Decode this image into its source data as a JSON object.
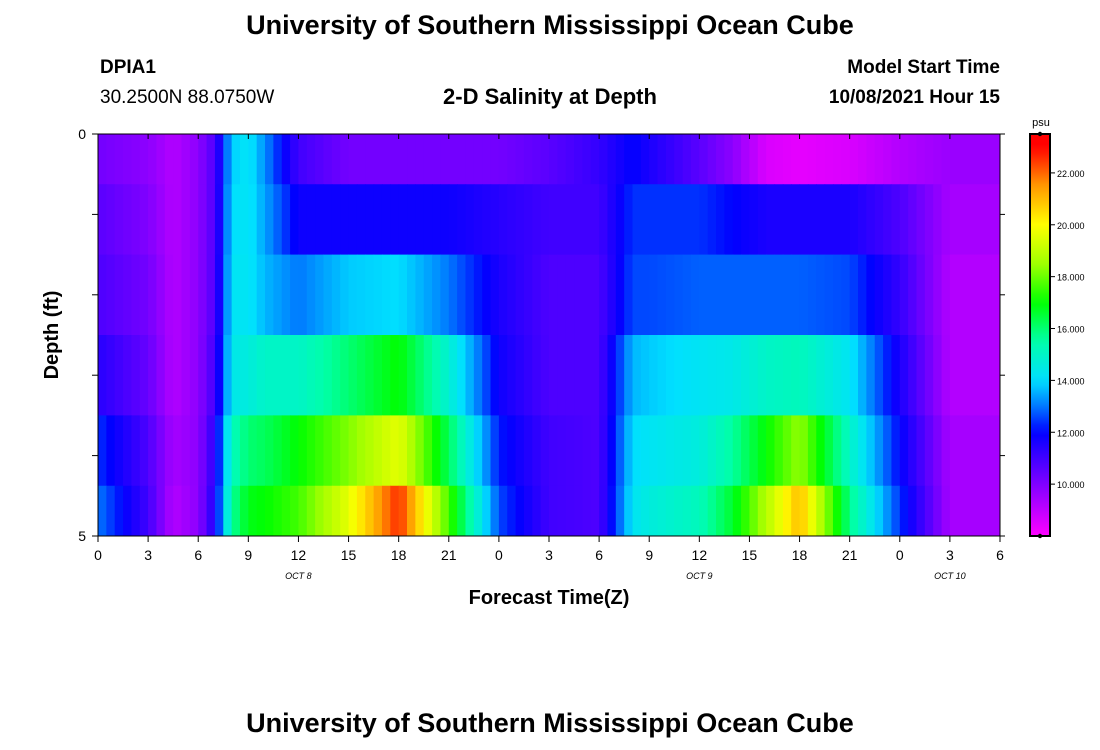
{
  "page": {
    "title_top": "University of Southern Mississippi Ocean Cube",
    "title_bottom": "University of Southern Mississippi Ocean Cube",
    "station_id": "DPIA1",
    "station_coords": "30.2500N  88.0750W",
    "model_start_label": "Model Start Time",
    "model_start_value": "10/08/2021 Hour 15"
  },
  "chart_data": {
    "type": "heatmap",
    "title": "2-D Salinity at Depth",
    "xlabel": "Forecast Time(Z)",
    "ylabel": "Depth (ft)",
    "x_tick_labels": [
      "0",
      "3",
      "6",
      "9",
      "12",
      "15",
      "18",
      "21",
      "0",
      "3",
      "6",
      "9",
      "12",
      "15",
      "18",
      "21",
      "0",
      "3",
      "6"
    ],
    "date_labels": [
      {
        "label": "OCT 8",
        "hour": 12
      },
      {
        "label": "OCT 9",
        "hour": 36
      },
      {
        "label": "OCT 10",
        "hour": 51
      }
    ],
    "x_range_hours": [
      0,
      54
    ],
    "y_tick_labels": [
      "0",
      "5"
    ],
    "y_range": [
      0,
      5
    ],
    "depth_rows": [
      0.25,
      1.0,
      2.0,
      3.0,
      4.0,
      4.75
    ],
    "colorbar": {
      "unit": "psu",
      "min": 8.0,
      "max": 23.5,
      "tick_values": [
        10,
        12,
        14,
        16,
        18,
        20,
        22
      ],
      "tick_labels": [
        "10.000",
        "12.000",
        "14.000",
        "16.000",
        "18.000",
        "20.000",
        "22.000"
      ]
    },
    "color_scale": [
      [
        8.0,
        "#ff00ff"
      ],
      [
        9.5,
        "#a000ff"
      ],
      [
        11.0,
        "#4000ff"
      ],
      [
        12.0,
        "#0000ff"
      ],
      [
        13.0,
        "#0078ff"
      ],
      [
        14.0,
        "#00e0ff"
      ],
      [
        15.5,
        "#00ffaa"
      ],
      [
        17.0,
        "#00ff00"
      ],
      [
        18.5,
        "#a0ff00"
      ],
      [
        20.0,
        "#ffff00"
      ],
      [
        21.5,
        "#ff9900"
      ],
      [
        23.0,
        "#ff0000"
      ]
    ],
    "series": [
      {
        "depth": 0.25,
        "x": [
          0,
          3,
          4.5,
          6,
          7,
          8,
          9,
          10,
          12,
          15,
          18,
          21,
          24,
          27,
          30,
          32,
          33,
          36,
          38,
          40,
          42,
          45,
          48,
          51,
          54
        ],
        "values": [
          10.2,
          9.8,
          9.2,
          9.8,
          10.8,
          13.8,
          14.2,
          13.2,
          11.0,
          10.2,
          10.2,
          10.2,
          10.2,
          10.6,
          11.2,
          12.0,
          11.6,
          10.6,
          9.8,
          8.6,
          8.4,
          8.6,
          9.2,
          9.6,
          9.6
        ]
      },
      {
        "depth": 1.0,
        "x": [
          0,
          3,
          4.5,
          6,
          7,
          8,
          9,
          10,
          12,
          15,
          18,
          21,
          24,
          27,
          30,
          32,
          33,
          36,
          38,
          40,
          42,
          45,
          48,
          51,
          54
        ],
        "values": [
          10.6,
          10.0,
          9.2,
          9.8,
          10.8,
          14.0,
          14.2,
          13.4,
          11.8,
          11.8,
          11.8,
          11.8,
          11.4,
          11.0,
          11.0,
          12.4,
          12.4,
          12.4,
          12.0,
          11.6,
          11.6,
          11.6,
          10.8,
          9.4,
          9.4
        ]
      },
      {
        "depth": 2.0,
        "x": [
          0,
          3,
          4.5,
          6,
          7,
          8,
          9,
          10,
          12,
          15,
          18,
          21,
          24,
          27,
          30,
          32,
          33,
          36,
          38,
          40,
          42,
          45,
          48,
          51,
          54
        ],
        "values": [
          10.8,
          10.2,
          9.2,
          9.8,
          10.8,
          14.2,
          14.2,
          13.6,
          13.0,
          13.8,
          14.0,
          13.0,
          11.6,
          10.8,
          10.8,
          12.6,
          12.6,
          12.8,
          12.8,
          12.8,
          12.8,
          12.6,
          11.2,
          9.2,
          9.2
        ]
      },
      {
        "depth": 3.0,
        "x": [
          0,
          3,
          4.5,
          6,
          7,
          8,
          9,
          10,
          12,
          15,
          18,
          21,
          24,
          27,
          30,
          32,
          33,
          36,
          38,
          40,
          42,
          45,
          48,
          51,
          54
        ],
        "values": [
          11.4,
          10.4,
          9.2,
          9.8,
          11.0,
          14.4,
          14.6,
          15.0,
          15.0,
          16.0,
          17.0,
          14.8,
          11.8,
          10.8,
          10.8,
          13.6,
          13.8,
          14.2,
          14.4,
          15.0,
          15.2,
          14.2,
          11.6,
          9.2,
          9.2
        ]
      },
      {
        "depth": 4.0,
        "x": [
          0,
          3,
          4.5,
          6,
          7,
          8,
          9,
          10,
          12,
          15,
          18,
          21,
          24,
          27,
          30,
          32,
          33,
          36,
          38,
          40,
          42,
          45,
          48,
          51,
          54
        ],
        "values": [
          12.4,
          10.8,
          9.4,
          9.8,
          11.4,
          15.2,
          16.0,
          16.2,
          17.0,
          18.2,
          19.6,
          16.2,
          12.2,
          11.0,
          10.8,
          14.0,
          14.2,
          14.6,
          15.6,
          17.0,
          18.4,
          15.0,
          12.0,
          9.4,
          9.4
        ]
      },
      {
        "depth": 4.75,
        "x": [
          0,
          3,
          4.5,
          6,
          7,
          8,
          9,
          10,
          12,
          15,
          18,
          21,
          24,
          27,
          30,
          32,
          33,
          36,
          38,
          40,
          42,
          45,
          48,
          51,
          54
        ],
        "values": [
          13.0,
          11.0,
          9.2,
          9.8,
          11.6,
          15.6,
          16.8,
          17.0,
          17.6,
          19.6,
          22.6,
          17.6,
          12.6,
          11.0,
          10.8,
          14.2,
          14.6,
          15.2,
          16.6,
          18.8,
          21.0,
          15.8,
          12.4,
          9.4,
          9.4
        ]
      }
    ]
  }
}
